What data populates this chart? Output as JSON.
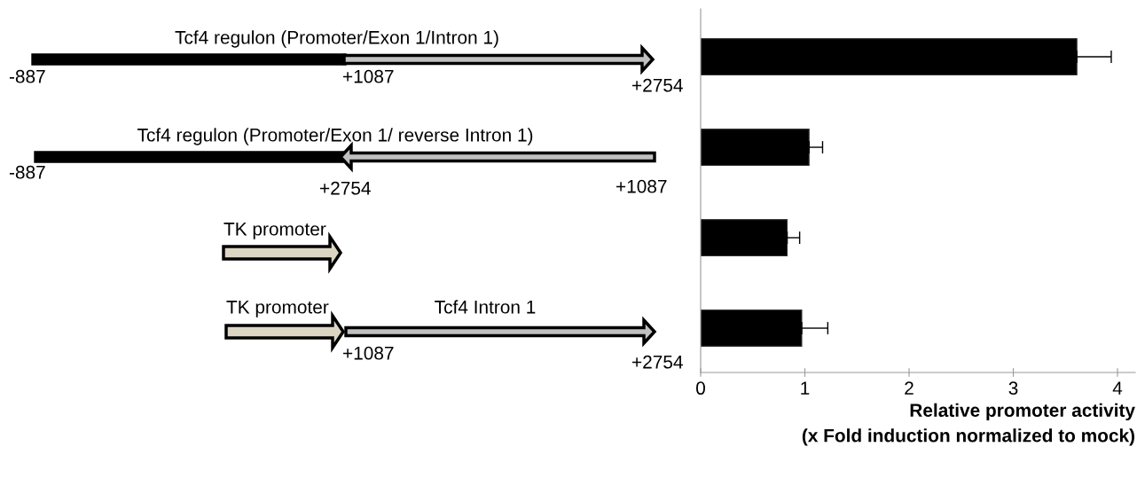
{
  "chart_data": {
    "type": "bar",
    "orientation": "horizontal",
    "categories": [
      null,
      null,
      null,
      null
    ],
    "values": [
      3.61,
      1.04,
      0.83,
      0.97
    ],
    "errors": [
      [
        3.61,
        3.94
      ],
      [
        1.04,
        1.17
      ],
      [
        0.83,
        0.95
      ],
      [
        0.97,
        1.22
      ]
    ],
    "color": "#000000",
    "xlim": [
      0,
      4.17
    ],
    "xticks": [
      0,
      1,
      2,
      3,
      4
    ],
    "xlabel": "Relative promoter activity\n(x Fold induction normalized to mock)",
    "grid": false,
    "legend": false,
    "annotations": [
      "Tcf4 regulon (Promoter/Exon 1/Intron 1)",
      "-887",
      "+1087",
      "+2754",
      "Tcf4 regulon (Promoter/Exon 1/ reverse Intron 1)",
      "-887",
      "+2754",
      "+1087",
      "TK promoter",
      "TK promoter",
      "Tcf4 Intron 1",
      "+1087",
      "+2754"
    ]
  }
}
